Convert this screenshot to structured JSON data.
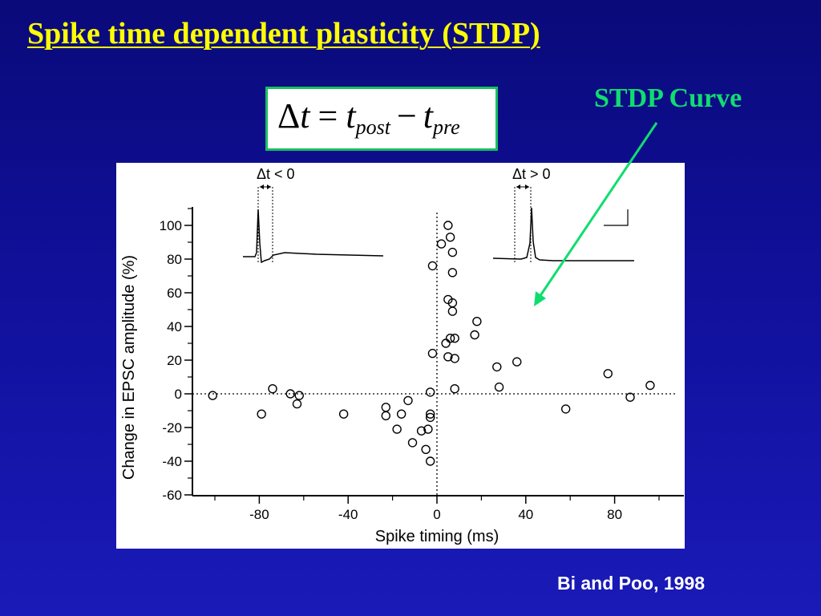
{
  "slide": {
    "title": "Spike time dependent plasticity (STDP)",
    "formula": {
      "delta": "Δ",
      "t": "t",
      "equals": "=",
      "minus": "−",
      "post": "post",
      "pre": "pre"
    },
    "annotation_label": "STDP Curve",
    "citation": "Bi and Poo, 1998",
    "colors": {
      "title": "#ffff00",
      "annotation": "#10dd70",
      "background": "#10109a"
    }
  },
  "chart_data": {
    "type": "scatter",
    "xlabel": "Spike timing (ms)",
    "ylabel": "Change in EPSC amplitude (%)",
    "xlim": [
      -110,
      110
    ],
    "ylim": [
      -60,
      110
    ],
    "xticks": [
      -80,
      -40,
      0,
      40,
      80
    ],
    "yticks": [
      100,
      80,
      60,
      40,
      20,
      0,
      -20,
      -40,
      -60
    ],
    "grid": false,
    "reference_lines": {
      "horizontal_y": 0,
      "vertical_x": 0
    },
    "inset_labels": [
      "Δt < 0",
      "Δt > 0"
    ],
    "points": [
      {
        "x": -101,
        "y": -1
      },
      {
        "x": -79,
        "y": -12
      },
      {
        "x": -74,
        "y": 3
      },
      {
        "x": -66,
        "y": 0
      },
      {
        "x": -63,
        "y": -6
      },
      {
        "x": -62,
        "y": -1
      },
      {
        "x": -42,
        "y": -12
      },
      {
        "x": -23,
        "y": -8
      },
      {
        "x": -23,
        "y": -13
      },
      {
        "x": -18,
        "y": -21
      },
      {
        "x": -16,
        "y": -12
      },
      {
        "x": -13,
        "y": -4
      },
      {
        "x": -11,
        "y": -29
      },
      {
        "x": -7,
        "y": -22
      },
      {
        "x": -5,
        "y": -33
      },
      {
        "x": -4,
        "y": -21
      },
      {
        "x": -3,
        "y": -40
      },
      {
        "x": -3,
        "y": -12
      },
      {
        "x": -3,
        "y": -14
      },
      {
        "x": -3,
        "y": 1
      },
      {
        "x": -2,
        "y": 24
      },
      {
        "x": -2,
        "y": 76
      },
      {
        "x": 2,
        "y": 89
      },
      {
        "x": 4,
        "y": 30
      },
      {
        "x": 5,
        "y": 22
      },
      {
        "x": 5,
        "y": 56
      },
      {
        "x": 5,
        "y": 100
      },
      {
        "x": 6,
        "y": 33
      },
      {
        "x": 6,
        "y": 93
      },
      {
        "x": 7,
        "y": 49
      },
      {
        "x": 7,
        "y": 54
      },
      {
        "x": 7,
        "y": 84
      },
      {
        "x": 7,
        "y": 72
      },
      {
        "x": 8,
        "y": 21
      },
      {
        "x": 8,
        "y": 3
      },
      {
        "x": 8,
        "y": 33
      },
      {
        "x": 17,
        "y": 35
      },
      {
        "x": 18,
        "y": 43
      },
      {
        "x": 27,
        "y": 16
      },
      {
        "x": 28,
        "y": 4
      },
      {
        "x": 36,
        "y": 19
      },
      {
        "x": 58,
        "y": -9
      },
      {
        "x": 77,
        "y": 12
      },
      {
        "x": 87,
        "y": -2
      },
      {
        "x": 96,
        "y": 5
      }
    ]
  }
}
